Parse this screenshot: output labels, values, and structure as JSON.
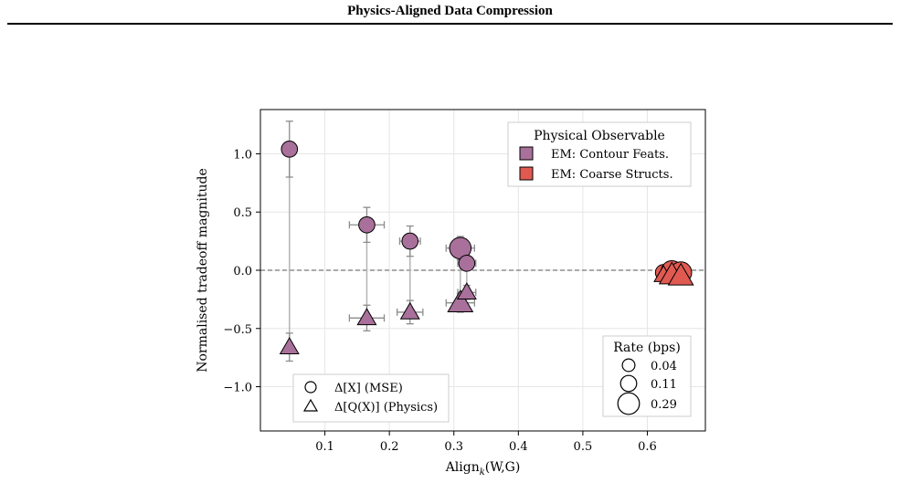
{
  "header": {
    "title": "Physics-Aligned Data Compression"
  },
  "chart_data": {
    "type": "scatter",
    "xlabel_main": "Align",
    "xlabel_sub": "k",
    "xlabel_tail": "(W,G)",
    "ylabel": "Normalised tradeoff magnitude",
    "xlim": [
      0.0,
      0.69
    ],
    "ylim": [
      -1.38,
      1.38
    ],
    "xticks": [
      0.1,
      0.2,
      0.3,
      0.4,
      0.5,
      0.6
    ],
    "xtick_labels": [
      "0.1",
      "0.2",
      "0.3",
      "0.4",
      "0.5",
      "0.6"
    ],
    "yticks": [
      1.0,
      0.5,
      0.0,
      -0.5,
      -1.0
    ],
    "ytick_labels": [
      "1.0",
      "0.5",
      "0.0",
      "−0.5",
      "−1.0"
    ],
    "grid": true,
    "reference_line_y": 0.0,
    "legend_observable": {
      "title": "Physical Observable",
      "placement": "upper right",
      "items": [
        {
          "label": "EM: Contour Feats.",
          "color": "#a8709a"
        },
        {
          "label": "EM: Coarse Structs.",
          "color": "#e05a52"
        }
      ]
    },
    "legend_metric": {
      "placement": "lower left",
      "items": [
        {
          "label": "Δ[X] (MSE)",
          "marker": "circle"
        },
        {
          "label": "Δ[Q(X)] (Physics)",
          "marker": "triangle"
        }
      ]
    },
    "legend_rate": {
      "title": "Rate (bps)",
      "placement": "lower right",
      "items": [
        {
          "label": "0.04",
          "rate": 0.04
        },
        {
          "label": "0.11",
          "rate": 0.11
        },
        {
          "label": "0.29",
          "rate": 0.29
        }
      ]
    },
    "series": [
      {
        "name": "EM: Contour Feats.",
        "color": "#a8709a",
        "points": [
          {
            "x": 0.045,
            "y": 1.04,
            "yerr": 0.24,
            "xerr": 0.0,
            "rate": 0.11,
            "marker": "circle"
          },
          {
            "x": 0.045,
            "y": -0.66,
            "yerr": 0.12,
            "xerr": 0.0,
            "rate": 0.11,
            "marker": "triangle"
          },
          {
            "x": 0.165,
            "y": 0.39,
            "yerr": 0.15,
            "xerr": 0.027,
            "rate": 0.11,
            "marker": "circle"
          },
          {
            "x": 0.165,
            "y": -0.41,
            "yerr": 0.11,
            "xerr": 0.027,
            "rate": 0.11,
            "marker": "triangle"
          },
          {
            "x": 0.232,
            "y": 0.25,
            "yerr": 0.13,
            "xerr": 0.016,
            "rate": 0.11,
            "marker": "circle"
          },
          {
            "x": 0.232,
            "y": -0.36,
            "yerr": 0.1,
            "xerr": 0.02,
            "rate": 0.11,
            "marker": "triangle"
          },
          {
            "x": 0.31,
            "y": 0.19,
            "yerr": 0.1,
            "xerr": 0.022,
            "rate": 0.29,
            "marker": "circle"
          },
          {
            "x": 0.31,
            "y": -0.28,
            "yerr": 0.08,
            "xerr": 0.022,
            "rate": 0.29,
            "marker": "triangle"
          },
          {
            "x": 0.32,
            "y": 0.06,
            "yerr": 0.06,
            "xerr": 0.014,
            "rate": 0.11,
            "marker": "circle"
          },
          {
            "x": 0.32,
            "y": -0.19,
            "yerr": 0.06,
            "xerr": 0.014,
            "rate": 0.11,
            "marker": "triangle"
          }
        ]
      },
      {
        "name": "EM: Coarse Structs.",
        "color": "#e05a52",
        "points": [
          {
            "x": 0.625,
            "y": -0.02,
            "yerr": 0.0,
            "xerr": 0.0,
            "rate": 0.11,
            "marker": "circle"
          },
          {
            "x": 0.638,
            "y": -0.01,
            "yerr": 0.0,
            "xerr": 0.0,
            "rate": 0.29,
            "marker": "circle"
          },
          {
            "x": 0.652,
            "y": -0.02,
            "yerr": 0.0,
            "xerr": 0.0,
            "rate": 0.29,
            "marker": "circle"
          },
          {
            "x": 0.625,
            "y": -0.04,
            "yerr": 0.0,
            "xerr": 0.0,
            "rate": 0.11,
            "marker": "triangle"
          },
          {
            "x": 0.638,
            "y": -0.04,
            "yerr": 0.0,
            "xerr": 0.0,
            "rate": 0.29,
            "marker": "triangle"
          },
          {
            "x": 0.652,
            "y": -0.05,
            "yerr": 0.0,
            "xerr": 0.0,
            "rate": 0.29,
            "marker": "triangle"
          }
        ]
      }
    ]
  }
}
